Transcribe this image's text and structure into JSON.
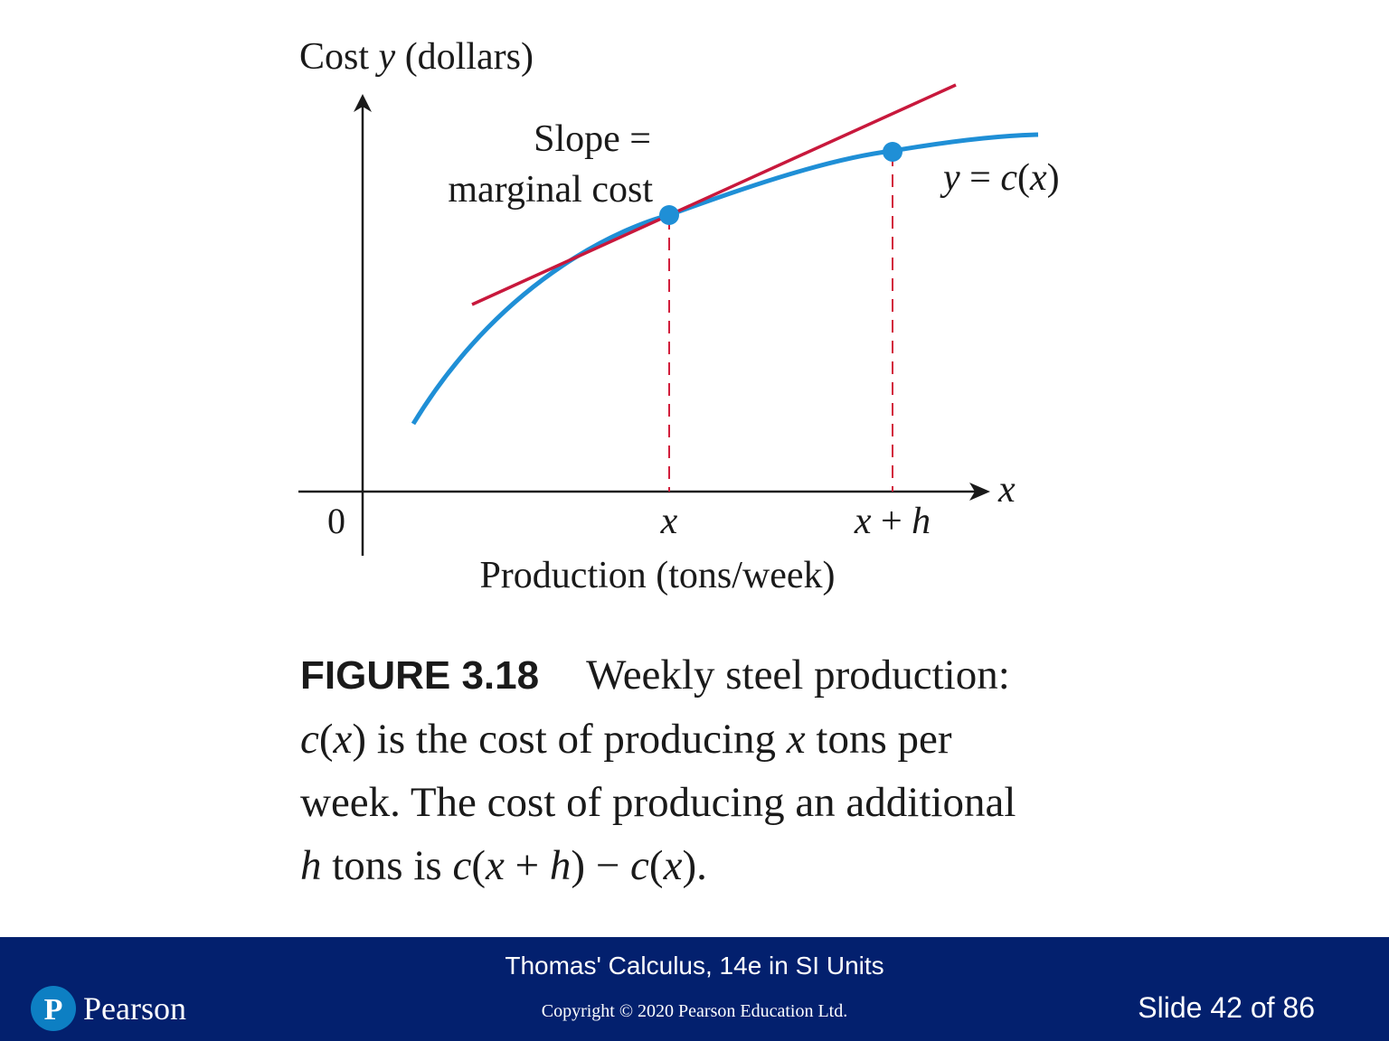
{
  "diagram": {
    "y_axis_label": {
      "pre": "Cost ",
      "var": "y",
      "post": " (dollars)"
    },
    "x_axis_var": "x",
    "origin": "0",
    "slope_label": [
      "Slope =",
      "marginal cost"
    ],
    "curve_label": {
      "y": "y",
      "eq": " = ",
      "c": "c",
      "open": "(",
      "x": "x",
      "close": ")"
    },
    "tick_x": "x",
    "tick_xh": {
      "x": "x",
      "plus": " + ",
      "h": "h"
    },
    "x_axis_label": "Production (tons/week)",
    "colors": {
      "curve": "#1f8fd6",
      "tangent": "#c8183c",
      "dash": "#d21e3c",
      "axis": "#1a1a1a",
      "point": "#1f8fd6"
    }
  },
  "caption": {
    "figure_label": "FIGURE 3.18",
    "line1_text": "Weekly steel production:",
    "line2": {
      "a": "c",
      "b": "(",
      "c": "x",
      "d": ") is the cost of producing ",
      "e": "x",
      "f": " tons per"
    },
    "line3": "week. The cost of producing an additional",
    "line4": {
      "a": "h",
      "b": " tons is ",
      "c": "c",
      "d": "(",
      "e": "x",
      "f": " + ",
      "g": "h",
      "h": ") − ",
      "i": "c",
      "j": "(",
      "k": "x",
      "l": ")."
    }
  },
  "footer": {
    "book_title": "Thomas' Calculus, 14e in SI Units",
    "copyright": "Copyright © 2020 Pearson Education Ltd.",
    "slide_number": "Slide 42 of 86",
    "brand": "Pearson",
    "brand_logo_letter": "P",
    "background_color": "#03206e"
  }
}
